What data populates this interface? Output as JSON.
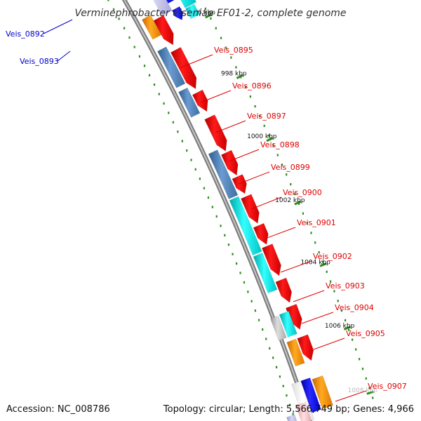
{
  "title": "Verminephrobacter eiseniae EF01-2, complete genome",
  "footer": {
    "accession": "Accession: NC_008786",
    "details": "Topology: circular; Length: 5,566,749 bp; Genes: 4,966"
  },
  "colors": {
    "forward_cds": "#ff0000",
    "forward_orange": "#ff9900",
    "reverse_blue": "#4f81bd",
    "reverse_cyan": "#00e5e5",
    "reverse_dark_blue": "#0000ff",
    "backbone": "#888888",
    "tick": "#2e8b1e",
    "label_red": "#dd0000",
    "label_blue": "#0000cc"
  },
  "ticks": [
    {
      "label": "996 kbp"
    },
    {
      "label": "998 kbp"
    },
    {
      "label": "1000 kbp"
    },
    {
      "label": "1002 kbp"
    },
    {
      "label": "1004 kbp"
    },
    {
      "label": "1006 kbp"
    },
    {
      "label": "1008 kbp"
    }
  ],
  "gene_labels": [
    {
      "name": "Veis_0892",
      "strand": "reverse"
    },
    {
      "name": "Veis_0893",
      "strand": "reverse"
    },
    {
      "name": "Veis_0895",
      "strand": "forward"
    },
    {
      "name": "Veis_0896",
      "strand": "forward"
    },
    {
      "name": "Veis_0897",
      "strand": "forward"
    },
    {
      "name": "Veis_0898",
      "strand": "forward"
    },
    {
      "name": "Veis_0899",
      "strand": "forward"
    },
    {
      "name": "Veis_0900",
      "strand": "forward"
    },
    {
      "name": "Veis_0901",
      "strand": "forward"
    },
    {
      "name": "Veis_0902",
      "strand": "forward"
    },
    {
      "name": "Veis_0903",
      "strand": "forward"
    },
    {
      "name": "Veis_0904",
      "strand": "forward"
    },
    {
      "name": "Veis_0905",
      "strand": "forward"
    },
    {
      "name": "Veis_0907",
      "strand": "forward"
    }
  ]
}
